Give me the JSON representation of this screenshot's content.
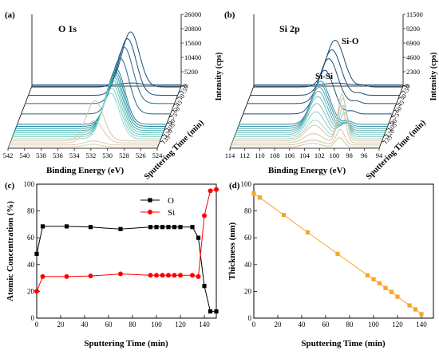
{
  "chart_data": [
    {
      "panel": "(a)",
      "type": "line",
      "subtype": "waterfall-3d",
      "title": "O 1s",
      "xlabel": "Binding Energy (eV)",
      "x_ticks": [
        542,
        540,
        538,
        536,
        534,
        532,
        530,
        528,
        526,
        524
      ],
      "zlabel": "Intensity (cps)",
      "z_ticks": [
        26000,
        20800,
        15600,
        10400,
        5200,
        0
      ],
      "ylabel": "Sputtering Time (min)",
      "y_ticks": [
        0,
        15,
        30,
        45,
        60,
        75,
        90,
        105,
        120,
        135
      ],
      "peak_center_ev": {
        "early": 530.0,
        "late": 531.8
      },
      "color_groups": {
        "dark": [
          0,
          15,
          30,
          45,
          60,
          75
        ],
        "teal": [
          90,
          95,
          100,
          105,
          110,
          115,
          120,
          125,
          130
        ],
        "tan": [
          135,
          140,
          145,
          150
        ]
      },
      "series": [
        {
          "name": "0",
          "peak_intensity": 700,
          "color": "#1b4f7a"
        },
        {
          "name": "5",
          "peak_intensity": 20000,
          "color": "#1b4f7a"
        },
        {
          "name": "25",
          "peak_intensity": 20500,
          "color": "#1b4f7a"
        },
        {
          "name": "45",
          "peak_intensity": 20400,
          "color": "#1f6a8e"
        },
        {
          "name": "70",
          "peak_intensity": 20200,
          "color": "#1f6a8e"
        },
        {
          "name": "95",
          "peak_intensity": 20000,
          "color": "#24839e"
        },
        {
          "name": "100",
          "peak_intensity": 19800,
          "color": "#24839e"
        },
        {
          "name": "105",
          "peak_intensity": 19600,
          "color": "#2d9aa8"
        },
        {
          "name": "110",
          "peak_intensity": 19400,
          "color": "#3aaeb0"
        },
        {
          "name": "115",
          "peak_intensity": 19000,
          "color": "#4fbcb6"
        },
        {
          "name": "120",
          "peak_intensity": 18500,
          "color": "#67c7bd"
        },
        {
          "name": "125",
          "peak_intensity": 17500,
          "color": "#7fd0c3"
        },
        {
          "name": "130",
          "peak_intensity": 16500,
          "color": "#98d8ca"
        },
        {
          "name": "135",
          "peak_intensity": 14500,
          "color": "#d6c3a5"
        },
        {
          "name": "140",
          "peak_intensity": 8000,
          "color": "#d9c7aa"
        },
        {
          "name": "145",
          "peak_intensity": 1500,
          "color": "#dccbaf"
        },
        {
          "name": "150",
          "peak_intensity": 1000,
          "color": "#e0cfb4"
        }
      ]
    },
    {
      "panel": "(b)",
      "type": "line",
      "subtype": "waterfall-3d",
      "title": "Si 2p",
      "xlabel": "Binding Energy (eV)",
      "x_ticks": [
        114,
        112,
        110,
        108,
        106,
        104,
        102,
        100,
        98,
        96,
        94
      ],
      "zlabel": "Intensity (cps)",
      "z_ticks": [
        11500,
        9200,
        6900,
        4600,
        2300,
        0
      ],
      "ylabel": "Sputtering Time (min)",
      "y_ticks": [
        0,
        15,
        30,
        45,
        60,
        75,
        90,
        105,
        120,
        135
      ],
      "annotations": [
        "Si-O",
        "Si-Si"
      ],
      "peaks_ev": {
        "Si-O": 103.0,
        "Si-Si": 99.3
      },
      "series": [
        {
          "name": "0",
          "peak_sio": 300,
          "peak_sisi": 0
        },
        {
          "name": "5",
          "peak_sio": 7500,
          "peak_sisi": 300
        },
        {
          "name": "25",
          "peak_sio": 7300,
          "peak_sisi": 350
        },
        {
          "name": "45",
          "peak_sio": 7200,
          "peak_sisi": 400
        },
        {
          "name": "70",
          "peak_sio": 7000,
          "peak_sisi": 450
        },
        {
          "name": "95",
          "peak_sio": 6900,
          "peak_sisi": 500
        },
        {
          "name": "100",
          "peak_sio": 6800,
          "peak_sisi": 600
        },
        {
          "name": "105",
          "peak_sio": 6600,
          "peak_sisi": 800
        },
        {
          "name": "110",
          "peak_sio": 6300,
          "peak_sisi": 1200
        },
        {
          "name": "115",
          "peak_sio": 5800,
          "peak_sisi": 2000
        },
        {
          "name": "120",
          "peak_sio": 5000,
          "peak_sisi": 3500
        },
        {
          "name": "125",
          "peak_sio": 4000,
          "peak_sisi": 5000
        },
        {
          "name": "130",
          "peak_sio": 3000,
          "peak_sisi": 6500
        },
        {
          "name": "135",
          "peak_sio": 2500,
          "peak_sisi": 7500
        },
        {
          "name": "140",
          "peak_sio": 1500,
          "peak_sisi": 6000
        },
        {
          "name": "145",
          "peak_sio": 800,
          "peak_sisi": 2500
        },
        {
          "name": "150",
          "peak_sio": 600,
          "peak_sisi": 1500
        }
      ]
    },
    {
      "panel": "(c)",
      "type": "line",
      "xlabel": "Sputtering Time (min)",
      "ylabel": "Atomic Concentration (%)",
      "xlim": [
        0,
        150
      ],
      "ylim": [
        0,
        100
      ],
      "x_ticks": [
        0,
        20,
        40,
        60,
        80,
        100,
        120,
        140
      ],
      "y_ticks": [
        0,
        20,
        40,
        60,
        80,
        100
      ],
      "legend_position": "top-right",
      "series": [
        {
          "name": "O",
          "color": "#000000",
          "marker": "square",
          "x": [
            0,
            5,
            25,
            45,
            70,
            95,
            100,
            105,
            110,
            115,
            120,
            130,
            135,
            140,
            145,
            150
          ],
          "y": [
            48,
            68.5,
            68.5,
            68,
            66.5,
            68,
            68,
            68,
            68,
            68,
            68,
            68,
            60,
            24,
            5,
            5
          ]
        },
        {
          "name": "Si",
          "color": "#ff0000",
          "marker": "circle",
          "x": [
            0,
            5,
            25,
            45,
            70,
            95,
            100,
            105,
            110,
            115,
            120,
            130,
            135,
            140,
            145,
            150
          ],
          "y": [
            20,
            31,
            31,
            31.5,
            33,
            32,
            32,
            32,
            32,
            32,
            32,
            32,
            31,
            76.5,
            95,
            96
          ]
        }
      ]
    },
    {
      "panel": "(d)",
      "type": "line",
      "xlabel": "Sputtering Time (min)",
      "ylabel": "Thickness (nm)",
      "xlim": [
        0,
        150
      ],
      "ylim": [
        0,
        100
      ],
      "x_ticks": [
        0,
        20,
        40,
        60,
        80,
        100,
        120,
        140
      ],
      "y_ticks": [
        0,
        20,
        40,
        60,
        80,
        100
      ],
      "series": [
        {
          "color": "#f5a623",
          "marker": "square",
          "x": [
            0,
            5,
            25,
            45,
            70,
            95,
            100,
            105,
            110,
            115,
            120,
            130,
            135,
            140
          ],
          "y": [
            93,
            90,
            77,
            64,
            48,
            32,
            29,
            26,
            22.5,
            19.5,
            16,
            9.5,
            6.5,
            3
          ]
        }
      ]
    }
  ]
}
